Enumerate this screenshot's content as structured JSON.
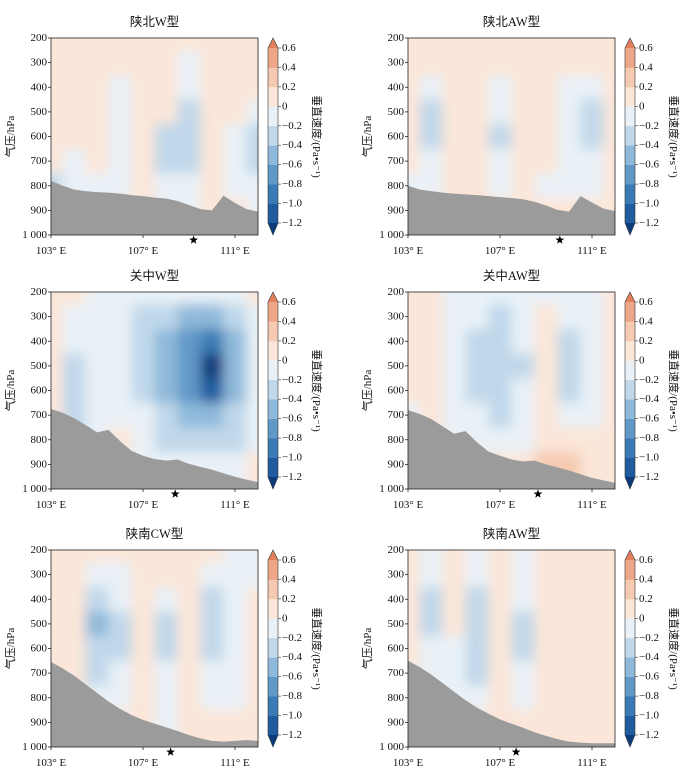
{
  "axes": {
    "ylabel": "气压/hPa",
    "x_ticks": [
      {
        "value": 103,
        "label": "103° E"
      },
      {
        "value": 107,
        "label": "107° E"
      },
      {
        "value": 111,
        "label": "111° E"
      }
    ],
    "y_ticks": [
      {
        "value": 200,
        "label": "200"
      },
      {
        "value": 300,
        "label": "300"
      },
      {
        "value": 400,
        "label": "400"
      },
      {
        "value": 500,
        "label": "500"
      },
      {
        "value": 600,
        "label": "600"
      },
      {
        "value": 700,
        "label": "700"
      },
      {
        "value": 800,
        "label": "800"
      },
      {
        "value": 900,
        "label": "900"
      },
      {
        "value": 1000,
        "label": "1 000"
      }
    ]
  },
  "colorbar": {
    "label": "垂直速度/(Pa•s⁻¹)",
    "extend": "both",
    "levels": [
      -1.2,
      -1.0,
      -0.8,
      -0.6,
      -0.4,
      -0.2,
      0,
      0.2,
      0.4,
      0.6
    ],
    "tick_labels": [
      "−1.2",
      "−1.0",
      "−0.8",
      "−0.6",
      "−0.4",
      "−0.2",
      "0",
      "0.2",
      "0.4",
      "0.6"
    ],
    "colors": [
      "#0c3b7a",
      "#1f5c9f",
      "#3a7ab5",
      "#6099c8",
      "#8fb9da",
      "#c0d8ea",
      "#e9f1f7",
      "#fbe6d9",
      "#f5cab1",
      "#eea688",
      "#e1805c"
    ]
  },
  "terrain_color": "#9b9b9b",
  "chart_data": [
    {
      "type": "heatmap",
      "title": "陕北W型",
      "xlim": [
        103,
        112
      ],
      "ylim": [
        1000,
        200
      ],
      "x": [
        103,
        104,
        105,
        106,
        107,
        108,
        109,
        110,
        111,
        112
      ],
      "y": [
        200,
        300,
        400,
        500,
        600,
        700,
        800,
        900,
        1000
      ],
      "values": [
        [
          0.05,
          0.05,
          0.05,
          0.05,
          0.05,
          0.1,
          0.05,
          0.05,
          0.05,
          0.05
        ],
        [
          0.05,
          0.1,
          0.05,
          0.05,
          0.1,
          0.05,
          -0.05,
          0.05,
          0.1,
          0.05
        ],
        [
          0.05,
          0.1,
          0.05,
          -0.05,
          0.1,
          0.05,
          -0.1,
          0.05,
          0.1,
          0.05
        ],
        [
          0.05,
          0.05,
          0.05,
          -0.1,
          0.1,
          0.05,
          -0.25,
          0.1,
          0.05,
          -0.1
        ],
        [
          0.05,
          0.05,
          0.1,
          -0.15,
          0.05,
          -0.25,
          -0.3,
          0.1,
          -0.1,
          -0.25
        ],
        [
          0,
          -0.1,
          0.05,
          -0.15,
          0.1,
          -0.25,
          -0.25,
          0.1,
          -0.1,
          -0.3
        ],
        [
          -0.25,
          -0.2,
          -0.1,
          -0.05,
          0.05,
          -0.2,
          -0.1,
          0.05,
          -0.1,
          -0.1
        ],
        [
          -0.1,
          -0.1,
          -0.05,
          0,
          0,
          -0.1,
          -0.1,
          0,
          0,
          -0.1
        ],
        [
          -0.1,
          -0.1,
          -0.05,
          0,
          0,
          -0.1,
          -0.1,
          0,
          0,
          -0.1
        ]
      ],
      "terrain": {
        "lon": [
          103,
          103.5,
          104,
          104.5,
          105,
          105.5,
          106,
          106.5,
          107,
          107.5,
          108,
          108.5,
          109,
          109.5,
          110,
          110.5,
          111,
          111.5,
          112
        ],
        "p": [
          780,
          800,
          815,
          822,
          826,
          828,
          832,
          838,
          842,
          848,
          852,
          862,
          878,
          895,
          900,
          840,
          870,
          895,
          905
        ]
      },
      "star_lon": 109.2
    },
    {
      "type": "heatmap",
      "title": "陕北AW型",
      "xlim": [
        103,
        112
      ],
      "ylim": [
        1000,
        200
      ],
      "x": [
        103,
        104,
        105,
        106,
        107,
        108,
        109,
        110,
        111,
        112
      ],
      "y": [
        200,
        300,
        400,
        500,
        600,
        700,
        800,
        900,
        1000
      ],
      "values": [
        [
          0.05,
          0.05,
          0.05,
          0.05,
          0.05,
          0.05,
          0.05,
          0.05,
          0.05,
          0.05
        ],
        [
          0.05,
          0.05,
          0,
          0.05,
          0.05,
          0.05,
          0,
          0.05,
          0.05,
          0.05
        ],
        [
          0.05,
          -0.1,
          0.05,
          0.05,
          -0.1,
          0.05,
          0.05,
          -0.05,
          -0.1,
          0.05
        ],
        [
          0.05,
          -0.25,
          0.05,
          0.05,
          -0.2,
          0.1,
          0.05,
          -0.1,
          -0.25,
          0.05
        ],
        [
          0.05,
          -0.25,
          0.05,
          0.05,
          -0.25,
          0.1,
          0.05,
          -0.15,
          -0.25,
          0.05
        ],
        [
          0.05,
          -0.2,
          0.05,
          0.05,
          -0.2,
          0.05,
          0.05,
          -0.2,
          -0.2,
          0.05
        ],
        [
          -0.2,
          -0.1,
          0.05,
          0.05,
          -0.1,
          0.05,
          -0.1,
          -0.1,
          -0.1,
          0.05
        ],
        [
          0,
          0,
          0.05,
          0.05,
          0,
          0.05,
          0,
          0,
          0,
          0.05
        ],
        [
          0,
          0,
          0.05,
          0.05,
          0,
          0.05,
          0,
          0,
          0,
          0.05
        ]
      ],
      "terrain": {
        "lon": [
          103,
          103.5,
          104,
          104.5,
          105,
          105.5,
          106,
          106.5,
          107,
          107.5,
          108,
          108.5,
          109,
          109.5,
          110,
          110.5,
          111,
          111.5,
          112
        ],
        "p": [
          800,
          815,
          822,
          828,
          832,
          835,
          838,
          842,
          846,
          850,
          855,
          865,
          880,
          898,
          905,
          842,
          868,
          893,
          903
        ]
      },
      "star_lon": 109.6
    },
    {
      "type": "heatmap",
      "title": "关中W型",
      "xlim": [
        103,
        112
      ],
      "ylim": [
        1000,
        200
      ],
      "x": [
        103,
        104,
        105,
        106,
        107,
        108,
        109,
        110,
        111,
        112
      ],
      "y": [
        200,
        300,
        400,
        500,
        600,
        700,
        800,
        900,
        1000
      ],
      "values": [
        [
          0.05,
          0.05,
          -0.05,
          -0.1,
          -0.1,
          -0.1,
          -0.15,
          -0.2,
          -0.1,
          0.05
        ],
        [
          0.05,
          -0.1,
          -0.1,
          -0.15,
          -0.25,
          -0.35,
          -0.45,
          -0.5,
          -0.35,
          -0.1
        ],
        [
          0.05,
          -0.2,
          -0.1,
          -0.2,
          -0.35,
          -0.5,
          -0.7,
          -0.85,
          -0.55,
          -0.2
        ],
        [
          0.1,
          -0.25,
          -0.15,
          -0.2,
          -0.3,
          -0.5,
          -0.8,
          -1.25,
          -0.6,
          -0.2
        ],
        [
          0.1,
          -0.3,
          -0.2,
          -0.15,
          -0.25,
          -0.45,
          -0.7,
          -1.05,
          -0.5,
          -0.2
        ],
        [
          0.1,
          -0.35,
          -0.2,
          -0.1,
          -0.2,
          -0.35,
          -0.5,
          -0.6,
          -0.35,
          -0.1
        ],
        [
          0.05,
          -0.3,
          -0.1,
          0.05,
          -0.1,
          -0.25,
          -0.35,
          -0.35,
          -0.25,
          -0.1
        ],
        [
          0,
          -0.1,
          0,
          0.05,
          -0.05,
          -0.1,
          -0.2,
          -0.2,
          -0.1,
          0
        ],
        [
          0,
          -0.1,
          0,
          0.05,
          -0.05,
          -0.1,
          -0.2,
          -0.2,
          -0.1,
          0
        ]
      ],
      "terrain": {
        "lon": [
          103,
          103.5,
          104,
          104.5,
          105,
          105.5,
          106,
          106.5,
          107,
          107.5,
          108,
          108.5,
          109,
          109.5,
          110,
          110.5,
          111,
          111.5,
          112
        ],
        "p": [
          675,
          690,
          712,
          740,
          770,
          760,
          805,
          845,
          865,
          878,
          885,
          880,
          898,
          910,
          922,
          936,
          950,
          962,
          972
        ]
      },
      "star_lon": 108.4
    },
    {
      "type": "heatmap",
      "title": "关中AW型",
      "xlim": [
        103,
        112
      ],
      "ylim": [
        1000,
        200
      ],
      "x": [
        103,
        104,
        105,
        106,
        107,
        108,
        109,
        110,
        111,
        112
      ],
      "y": [
        200,
        300,
        400,
        500,
        600,
        700,
        800,
        900,
        1000
      ],
      "values": [
        [
          0.05,
          0.05,
          -0.1,
          -0.1,
          -0.05,
          -0.1,
          -0.05,
          -0.1,
          -0.1,
          0.05
        ],
        [
          0.05,
          0.05,
          -0.15,
          -0.2,
          -0.25,
          -0.15,
          0.05,
          -0.2,
          -0.2,
          0.05
        ],
        [
          0.05,
          0.1,
          -0.2,
          -0.25,
          -0.35,
          -0.2,
          0.05,
          -0.25,
          -0.2,
          0.05
        ],
        [
          0.05,
          0.1,
          -0.1,
          -0.3,
          -0.4,
          -0.25,
          0.05,
          -0.3,
          -0.2,
          0.05
        ],
        [
          0.05,
          0.1,
          -0.1,
          -0.25,
          -0.35,
          -0.2,
          0.05,
          -0.25,
          -0.15,
          0.05
        ],
        [
          -0.1,
          0.05,
          -0.1,
          -0.2,
          -0.25,
          -0.15,
          0.05,
          -0.15,
          -0.1,
          0.05
        ],
        [
          -0.2,
          0.05,
          -0.05,
          -0.15,
          -0.1,
          -0.05,
          0.1,
          0.1,
          0,
          0.05
        ],
        [
          0,
          0,
          0,
          0,
          0.05,
          0.1,
          0.3,
          0.25,
          0.1,
          0.05
        ],
        [
          0,
          0,
          0,
          0,
          0.05,
          0.1,
          0.3,
          0.25,
          0.1,
          0.05
        ]
      ],
      "terrain": {
        "lon": [
          103,
          103.5,
          104,
          104.5,
          105,
          105.5,
          106,
          106.5,
          107,
          107.5,
          108,
          108.5,
          109,
          109.5,
          110,
          110.5,
          111,
          111.5,
          112
        ],
        "p": [
          680,
          695,
          715,
          745,
          775,
          765,
          810,
          848,
          865,
          880,
          888,
          885,
          900,
          912,
          925,
          940,
          955,
          965,
          975
        ]
      },
      "star_lon": 108.65
    },
    {
      "type": "heatmap",
      "title": "陕南CW型",
      "xlim": [
        103,
        112
      ],
      "ylim": [
        1000,
        200
      ],
      "x": [
        103,
        104,
        105,
        106,
        107,
        108,
        109,
        110,
        111,
        112
      ],
      "y": [
        200,
        300,
        400,
        500,
        600,
        700,
        800,
        900,
        1000
      ],
      "values": [
        [
          0.05,
          0.1,
          0.05,
          0.05,
          0.1,
          0.05,
          0.05,
          0.05,
          -0.05,
          -0.1
        ],
        [
          0.05,
          0.15,
          -0.1,
          -0.05,
          0.15,
          0.05,
          0.1,
          -0.1,
          -0.1,
          -0.15
        ],
        [
          0.05,
          0.15,
          -0.35,
          -0.2,
          0.1,
          -0.2,
          0.1,
          -0.25,
          -0.15,
          0.05
        ],
        [
          0.05,
          0.1,
          -0.45,
          -0.25,
          0.1,
          -0.3,
          0.05,
          -0.3,
          -0.15,
          0.05
        ],
        [
          0.05,
          0.1,
          -0.4,
          -0.25,
          0.05,
          -0.3,
          0.05,
          -0.3,
          -0.1,
          0.05
        ],
        [
          0.05,
          0.05,
          -0.25,
          -0.2,
          0.05,
          -0.2,
          0.05,
          -0.2,
          -0.1,
          0.05
        ],
        [
          0,
          0,
          -0.15,
          -0.1,
          0,
          -0.1,
          0,
          -0.1,
          -0.05,
          0
        ],
        [
          0,
          0,
          -0.05,
          0,
          0,
          -0.05,
          0,
          0,
          0,
          0
        ],
        [
          0,
          0,
          -0.05,
          0,
          0,
          -0.05,
          0,
          0,
          0,
          0
        ]
      ],
      "terrain": {
        "lon": [
          103,
          103.5,
          104,
          104.5,
          105,
          105.5,
          106,
          106.5,
          107,
          107.5,
          108,
          108.5,
          109,
          109.5,
          110,
          110.5,
          111,
          111.5,
          112
        ],
        "p": [
          655,
          680,
          710,
          745,
          780,
          815,
          845,
          870,
          890,
          905,
          920,
          935,
          952,
          965,
          975,
          978,
          975,
          972,
          975
        ]
      },
      "star_lon": 108.2
    },
    {
      "type": "heatmap",
      "title": "陕南AW型",
      "xlim": [
        103,
        112
      ],
      "ylim": [
        1000,
        200
      ],
      "x": [
        103,
        104,
        105,
        106,
        107,
        108,
        109,
        110,
        111,
        112
      ],
      "y": [
        200,
        300,
        400,
        500,
        600,
        700,
        800,
        900,
        1000
      ],
      "values": [
        [
          0.05,
          -0.1,
          0.05,
          -0.1,
          0.05,
          -0.1,
          0.05,
          0.05,
          0.05,
          0.05
        ],
        [
          0.05,
          -0.2,
          0.05,
          -0.2,
          0.05,
          -0.15,
          0.05,
          0.05,
          0.05,
          0.05
        ],
        [
          0.05,
          -0.25,
          0.05,
          -0.25,
          0.1,
          -0.2,
          0.05,
          0.05,
          0.05,
          0.05
        ],
        [
          0.05,
          -0.25,
          0.05,
          -0.3,
          0.1,
          -0.25,
          0.1,
          0.05,
          0.05,
          0.05
        ],
        [
          0.05,
          -0.2,
          -0.05,
          -0.3,
          0.1,
          -0.25,
          0.1,
          0.05,
          0.05,
          0.05
        ],
        [
          0,
          -0.15,
          -0.1,
          -0.25,
          0.05,
          -0.2,
          0.05,
          0.05,
          0.05,
          0.05
        ],
        [
          0,
          -0.1,
          -0.05,
          -0.15,
          0,
          -0.1,
          0,
          0.05,
          0.05,
          0
        ],
        [
          0,
          0,
          0,
          0,
          0,
          0,
          0,
          0,
          0,
          0
        ],
        [
          0,
          0,
          0,
          0,
          0,
          0,
          0,
          0,
          0,
          0
        ]
      ],
      "terrain": {
        "lon": [
          103,
          103.5,
          104,
          104.5,
          105,
          105.5,
          106,
          106.5,
          107,
          107.5,
          108,
          108.5,
          109,
          109.5,
          110,
          110.5,
          111,
          111.5,
          112
        ],
        "p": [
          650,
          675,
          705,
          740,
          775,
          810,
          840,
          865,
          888,
          905,
          922,
          940,
          955,
          968,
          978,
          982,
          985,
          985,
          985
        ]
      },
      "star_lon": 107.7
    }
  ]
}
